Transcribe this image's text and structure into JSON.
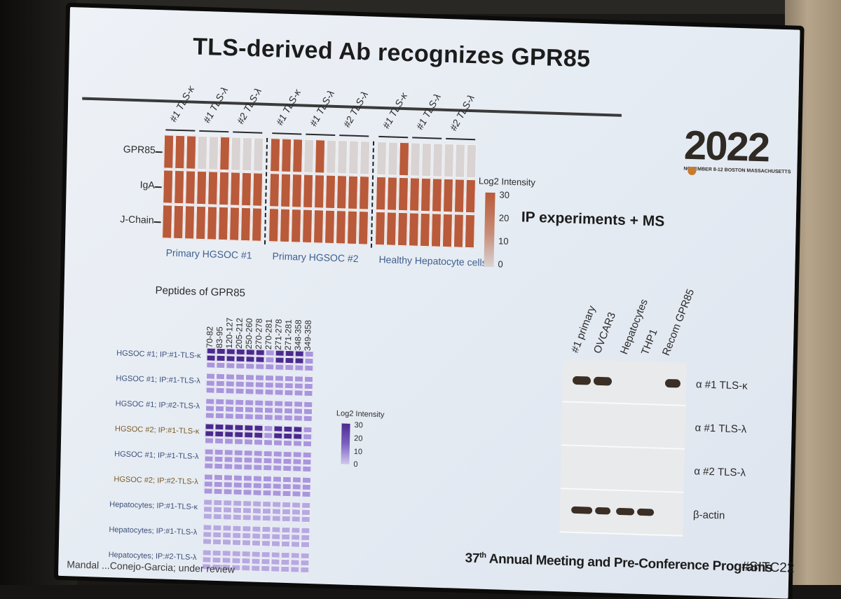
{
  "slide": {
    "title": "TLS-derived Ab recognizes GPR85",
    "logo_year": "2022",
    "logo_subtitle": "NOVEMBER 8-12  BOSTON MASSACHUSETTS",
    "ip_caption": "IP experiments + MS",
    "footer": "37th Annual Meeting and Pre-Conference Programs",
    "footer_sup": "th",
    "footer_num": "37",
    "footer_rest": "Annual Meeting and Pre-Conference Programs",
    "hashtag": "#SITC22",
    "citation": "Mandal ...Conejo-Garcia; under review"
  },
  "heatmap1": {
    "row_labels": [
      "GPR85",
      "IgA",
      "J-Chain"
    ],
    "column_headers": [
      "#1 TLS-κ",
      "#1 TLS-λ",
      "#2 TLS-λ",
      "#1 TLS-κ",
      "#1 TLS-λ",
      "#2 TLS-λ",
      "#1 TLS-κ",
      "#1 TLS-λ",
      "#2 TLS-λ"
    ],
    "group_labels": [
      "Primary HGSOC #1",
      "Primary HGSOC #2",
      "Healthy Hepatocyte cells"
    ],
    "legend_title": "Log2 Intensity",
    "legend_ticks": [
      "30",
      "20",
      "10",
      "0"
    ],
    "high_color": "#b95a3a",
    "low_color": "#d9d3d3",
    "gpr85_high": [
      1,
      1,
      1,
      0,
      0,
      1,
      0,
      0,
      0,
      1,
      1,
      1,
      0,
      1,
      0,
      0,
      0,
      0,
      0,
      0,
      1,
      0,
      0,
      0,
      0,
      0,
      0
    ]
  },
  "heatmap2": {
    "title": "Peptides of GPR85",
    "peptides": [
      "70-82",
      "83-95",
      "120-127",
      "205-212",
      "250-260",
      "270-278",
      "270-281",
      "271-278",
      "271-281",
      "348-358",
      "349-358"
    ],
    "row_labels": [
      "HGSOC #1; IP:#1-TLS-κ",
      "HGSOC #1; IP:#1-TLS-λ",
      "HGSOC #1; IP:#2-TLS-λ",
      "HGSOC #2; IP:#1-TLS-κ",
      "HGSOC #1; IP:#1-TLS-λ",
      "HGSOC #2; IP:#2-TLS-λ",
      "Hepatocytes; IP:#1-TLS-κ",
      "Hepatocytes; IP:#1-TLS-λ",
      "Hepatocytes; IP:#2-TLS-λ"
    ],
    "legend_title": "Log2 Intensity",
    "legend_ticks": [
      "30",
      "20",
      "10",
      "0"
    ],
    "high_color": "#4b2a8f",
    "low_color": "#cfc7ec"
  },
  "western": {
    "lanes": [
      "#1 primary",
      "OVCAR3",
      "Hepatocytes",
      "THP1",
      "Recom GPR85"
    ],
    "panels": [
      "α #1 TLS-κ",
      "α #1 TLS-λ",
      "α #2 TLS-λ",
      "β-actin"
    ]
  }
}
